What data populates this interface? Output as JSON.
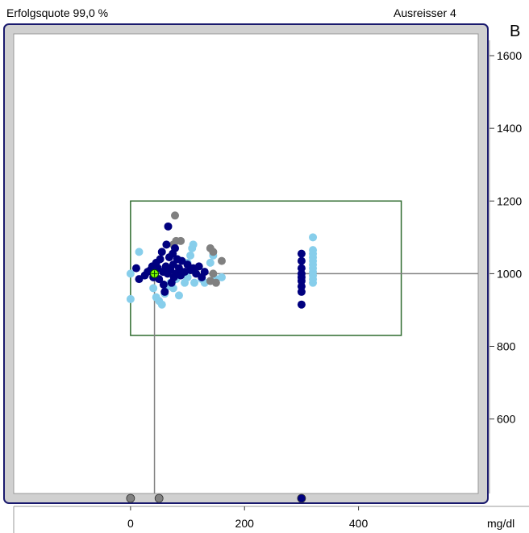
{
  "header": {
    "success_rate": "Erfolgsquote 99,0 %",
    "outliers": "Ausreisser 4",
    "panel_letter": "B"
  },
  "colors": {
    "frame": "#1a1a6e",
    "border_fill": "#d0d0d0",
    "target_box": "#2e6b2e",
    "crosshair": "#808080",
    "dark_blue": "#00007f",
    "light_blue": "#87ceeb",
    "gray": "#808080",
    "marker": "#7fff00"
  },
  "chart_data": {
    "type": "scatter",
    "xlabel": "mg/dl",
    "xlim": [
      -205,
      610
    ],
    "ylim": [
      395,
      1660
    ],
    "x_ticks": [
      "0",
      "200",
      "400"
    ],
    "x_tick_values": [
      0,
      200,
      400
    ],
    "y_ticks": [
      "600",
      "800",
      "1000",
      "1200",
      "1400",
      "1600"
    ],
    "y_tick_values": [
      600,
      800,
      1000,
      1200,
      1400,
      1600
    ],
    "target_box": {
      "x": [
        0,
        475
      ],
      "y": [
        830,
        1200
      ]
    },
    "crosshair": {
      "x": 42,
      "y": 1000
    },
    "series": [
      {
        "color_key": "dark_blue",
        "points": [
          [
            10,
            1015
          ],
          [
            15,
            985
          ],
          [
            25,
            995
          ],
          [
            30,
            1005
          ],
          [
            35,
            1010
          ],
          [
            38,
            1020
          ],
          [
            40,
            990
          ],
          [
            42,
            1000
          ],
          [
            45,
            1030
          ],
          [
            48,
            1015
          ],
          [
            50,
            985
          ],
          [
            52,
            1040
          ],
          [
            55,
            1060
          ],
          [
            57,
            1005
          ],
          [
            58,
            970
          ],
          [
            60,
            950
          ],
          [
            62,
            1020
          ],
          [
            63,
            1080
          ],
          [
            65,
            1000
          ],
          [
            66,
            1130
          ],
          [
            68,
            1045
          ],
          [
            70,
            1010
          ],
          [
            72,
            975
          ],
          [
            74,
            1055
          ],
          [
            75,
            1025
          ],
          [
            76,
            990
          ],
          [
            78,
            1070
          ],
          [
            80,
            1000
          ],
          [
            82,
            1040
          ],
          [
            85,
            1015
          ],
          [
            88,
            995
          ],
          [
            90,
            1035
          ],
          [
            95,
            1005
          ],
          [
            100,
            1025
          ],
          [
            105,
            1010
          ],
          [
            110,
            1015
          ],
          [
            115,
            1000
          ],
          [
            120,
            1020
          ],
          [
            125,
            990
          ],
          [
            130,
            1005
          ],
          [
            300,
            1055
          ],
          [
            300,
            1035
          ],
          [
            300,
            1015
          ],
          [
            300,
            1000
          ],
          [
            300,
            990
          ],
          [
            300,
            980
          ],
          [
            300,
            965
          ],
          [
            300,
            950
          ],
          [
            300,
            915
          ]
        ]
      },
      {
        "color_key": "light_blue",
        "points": [
          [
            0,
            1000
          ],
          [
            0,
            930
          ],
          [
            15,
            1060
          ],
          [
            40,
            960
          ],
          [
            45,
            935
          ],
          [
            50,
            925
          ],
          [
            55,
            915
          ],
          [
            60,
            945
          ],
          [
            65,
            965
          ],
          [
            70,
            975
          ],
          [
            75,
            960
          ],
          [
            80,
            985
          ],
          [
            85,
            940
          ],
          [
            90,
            1000
          ],
          [
            95,
            975
          ],
          [
            100,
            990
          ],
          [
            100,
            1030
          ],
          [
            105,
            1050
          ],
          [
            108,
            1070
          ],
          [
            110,
            1080
          ],
          [
            110,
            1010
          ],
          [
            112,
            975
          ],
          [
            125,
            985
          ],
          [
            130,
            975
          ],
          [
            140,
            980
          ],
          [
            140,
            1030
          ],
          [
            145,
            1050
          ],
          [
            150,
            985
          ],
          [
            160,
            990
          ],
          [
            320,
            1100
          ],
          [
            320,
            1065
          ],
          [
            320,
            1055
          ],
          [
            320,
            1045
          ],
          [
            320,
            1035
          ],
          [
            320,
            1025
          ],
          [
            320,
            1015
          ],
          [
            320,
            1005
          ],
          [
            320,
            995
          ],
          [
            320,
            985
          ],
          [
            320,
            975
          ]
        ]
      },
      {
        "color_key": "gray",
        "points": [
          [
            78,
            1160
          ],
          [
            75,
            1080
          ],
          [
            80,
            1090
          ],
          [
            140,
            1070
          ],
          [
            145,
            1060
          ],
          [
            160,
            1035
          ],
          [
            145,
            1000
          ],
          [
            140,
            980
          ],
          [
            150,
            975
          ],
          [
            88,
            1090
          ]
        ]
      }
    ],
    "bottom_markers": [
      {
        "x": 0,
        "color_key": "gray"
      },
      {
        "x": 50,
        "color_key": "gray"
      },
      {
        "x": 300,
        "color_key": "dark_blue"
      }
    ]
  }
}
